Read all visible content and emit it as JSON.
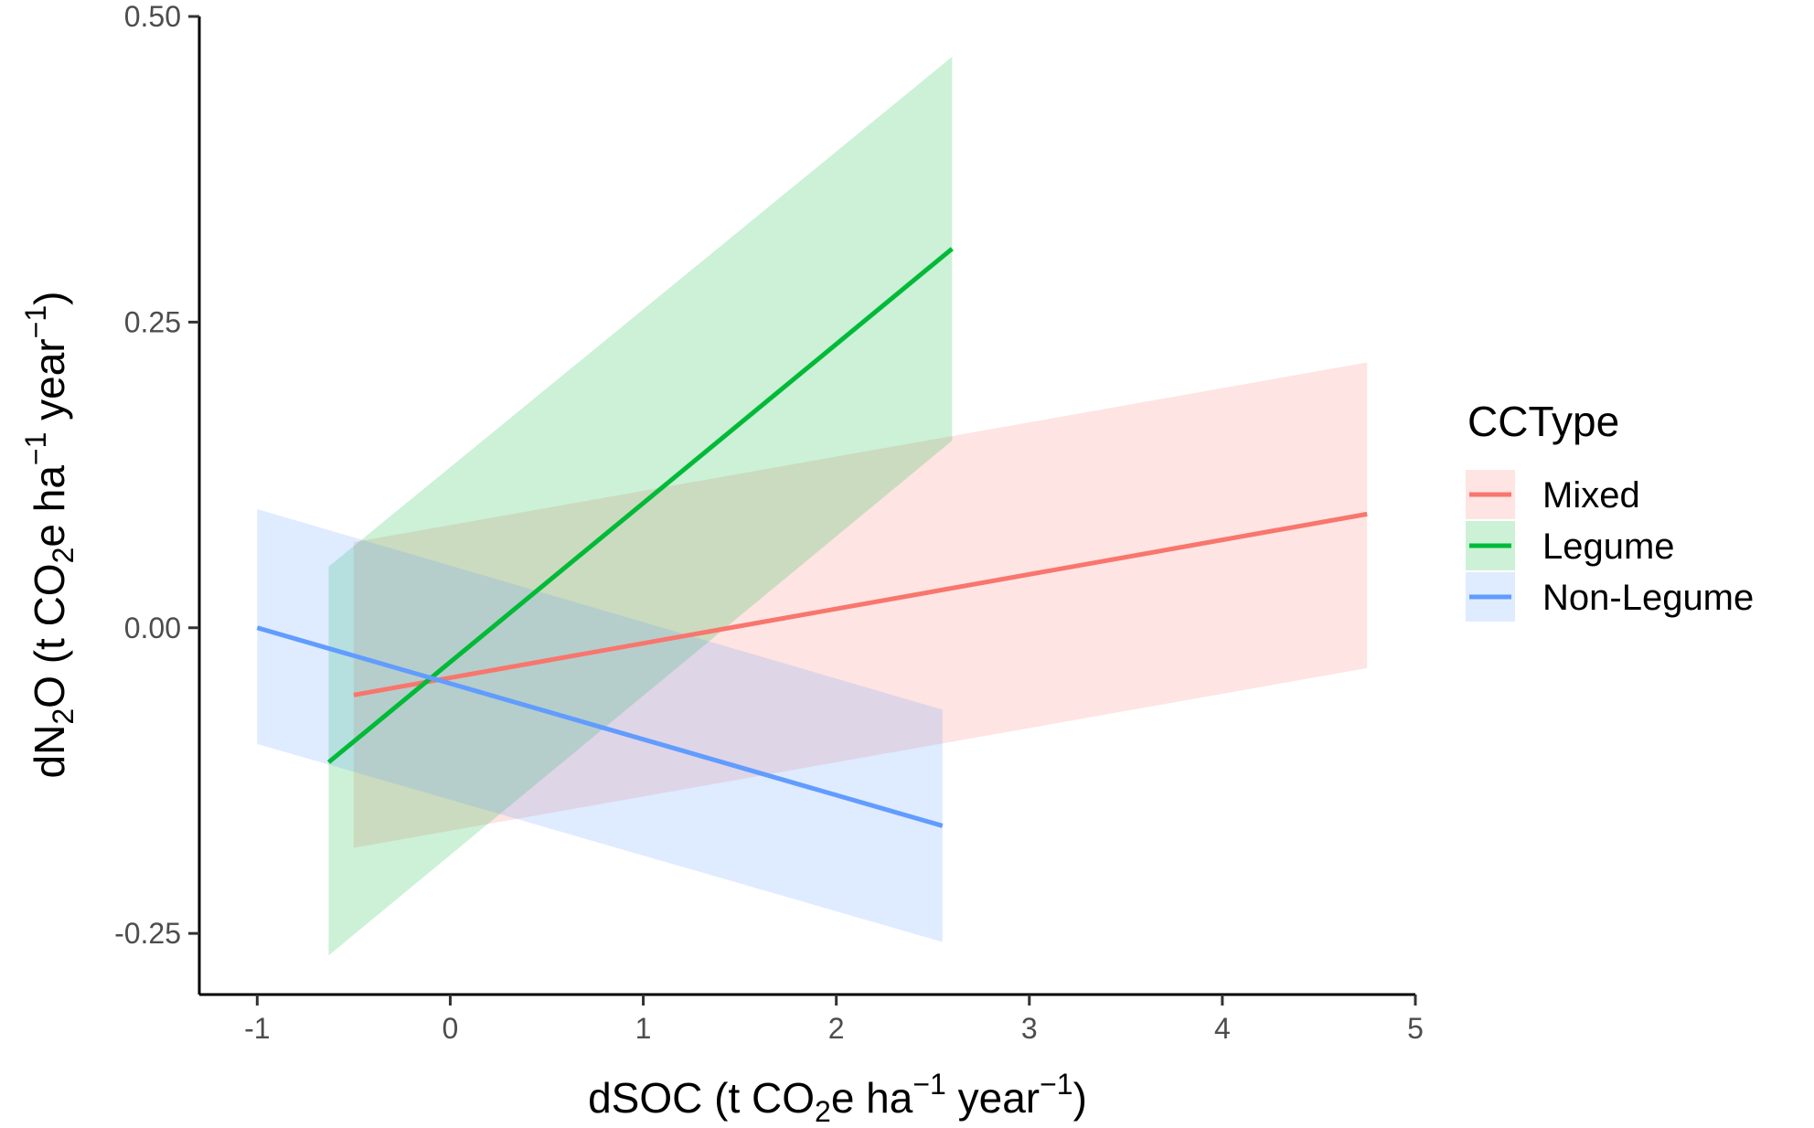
{
  "chart_data": {
    "type": "line",
    "xlabel": "dSOC (t CO2e ha−1 year−1)",
    "ylabel": "dN2O (t CO2e ha−1 year−1)",
    "xlabel_parts": {
      "a": "dSOC (t CO",
      "sub": "2",
      "b": "e ha",
      "sup1": "−1",
      "c": " year",
      "sup2": "−1",
      "d": ")"
    },
    "ylabel_parts": {
      "a": "dN",
      "sub1": "2",
      "b": "O (t CO",
      "sub2": "2",
      "c": "e ha",
      "sup1": "−1",
      "d": " year",
      "sup2": "−1",
      "e": ")"
    },
    "xlim": [
      -1.3,
      5.0
    ],
    "ylim": [
      -0.3,
      0.5
    ],
    "x_ticks": [
      -1,
      0,
      1,
      2,
      3,
      4,
      5
    ],
    "x_tick_labels": [
      "-1",
      "0",
      "1",
      "2",
      "3",
      "4",
      "5"
    ],
    "y_ticks": [
      -0.25,
      0.0,
      0.25,
      0.5
    ],
    "y_tick_labels": [
      "-0.25",
      "0.00",
      "0.25",
      "0.50"
    ],
    "grid": false,
    "legend_position": "right",
    "legend_title": "CCType",
    "series": [
      {
        "name": "Mixed",
        "color": "#F8766D",
        "line": [
          [
            -0.5,
            -0.055
          ],
          [
            4.75,
            0.093
          ]
        ],
        "band": {
          "x": [
            -0.5,
            4.75
          ],
          "upper": [
            0.07,
            0.217
          ],
          "lower": [
            -0.18,
            -0.033
          ]
        }
      },
      {
        "name": "Legume",
        "color": "#00BA38",
        "line": [
          [
            -0.63,
            -0.11
          ],
          [
            2.6,
            0.31
          ]
        ],
        "band": {
          "x": [
            -0.63,
            2.6
          ],
          "upper": [
            0.05,
            0.467
          ],
          "lower": [
            -0.268,
            0.153
          ]
        }
      },
      {
        "name": "Non-Legume",
        "color": "#619CFF",
        "line": [
          [
            -1.0,
            0.0
          ],
          [
            2.55,
            -0.162
          ]
        ],
        "band": {
          "x": [
            -1.0,
            2.55
          ],
          "upper": [
            0.097,
            -0.067
          ],
          "lower": [
            -0.095,
            -0.257
          ]
        }
      }
    ]
  }
}
